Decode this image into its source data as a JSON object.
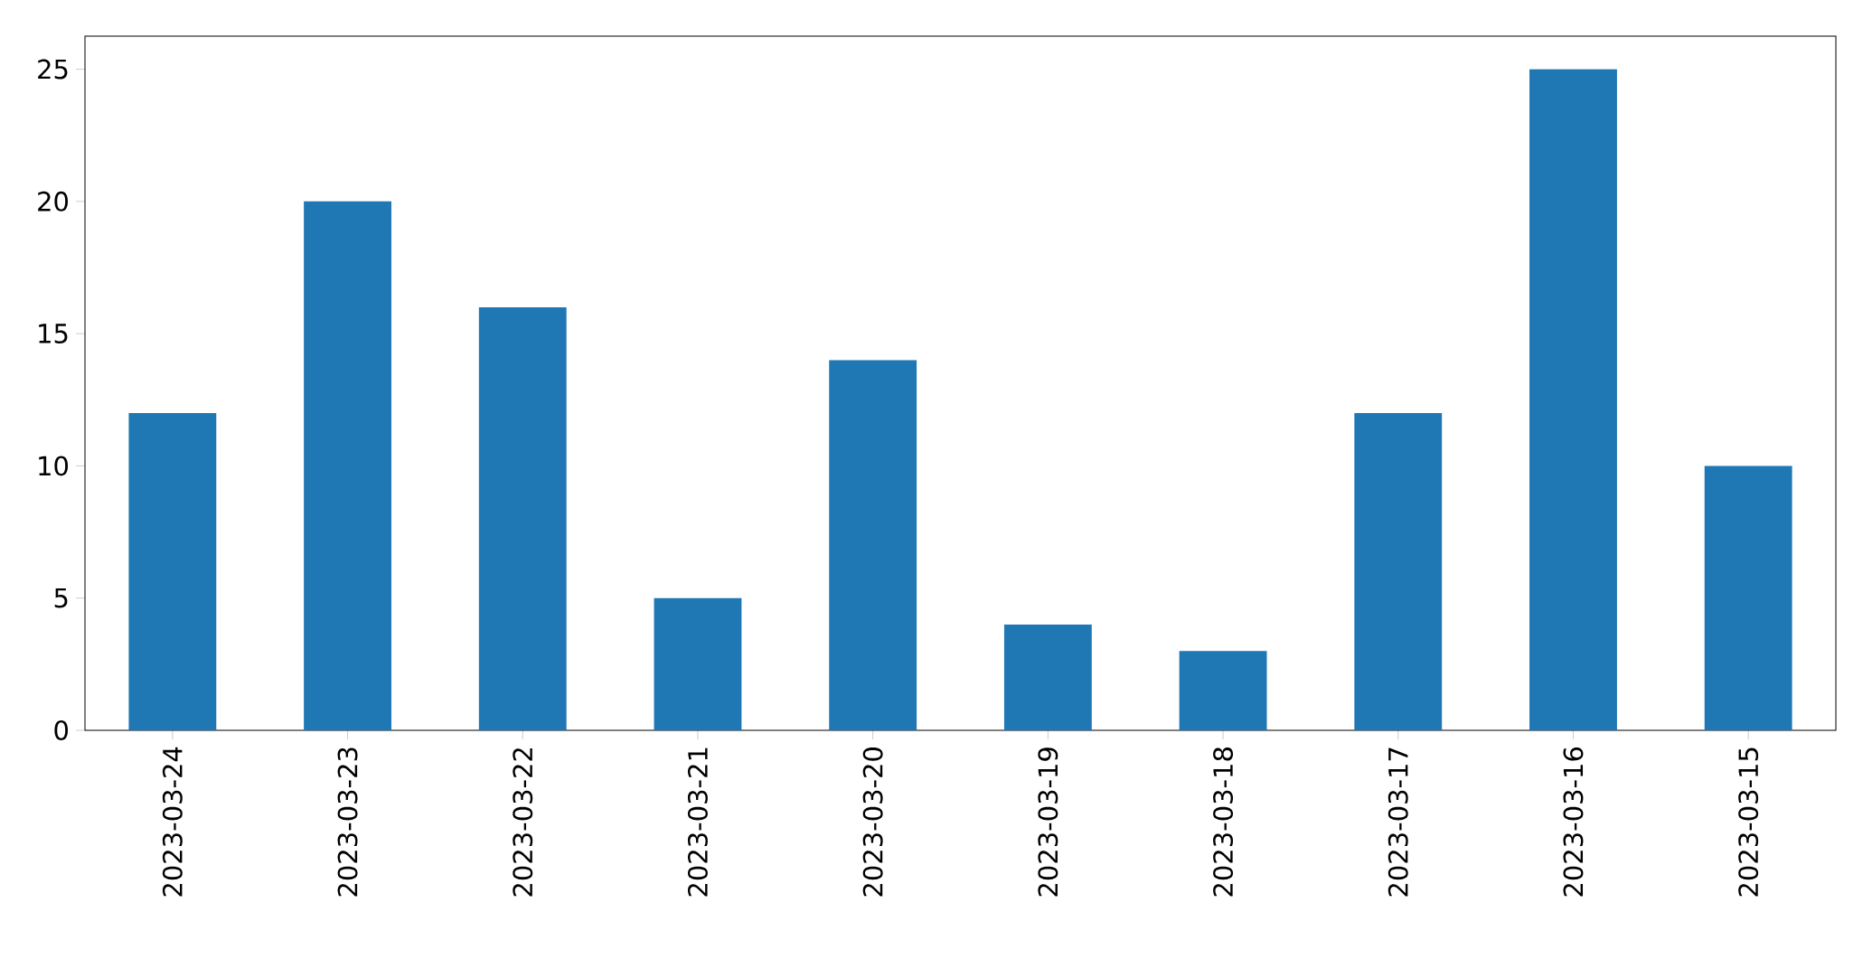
{
  "chart_data": {
    "type": "bar",
    "categories": [
      "2023-03-24",
      "2023-03-23",
      "2023-03-22",
      "2023-03-21",
      "2023-03-20",
      "2023-03-19",
      "2023-03-18",
      "2023-03-17",
      "2023-03-16",
      "2023-03-15"
    ],
    "values": [
      12,
      20,
      16,
      5,
      14,
      4,
      3,
      12,
      25,
      10
    ],
    "color": "#1f77b4",
    "ylim": [
      0,
      26.25
    ],
    "yticks": [
      0,
      5,
      10,
      15,
      20,
      25
    ]
  }
}
